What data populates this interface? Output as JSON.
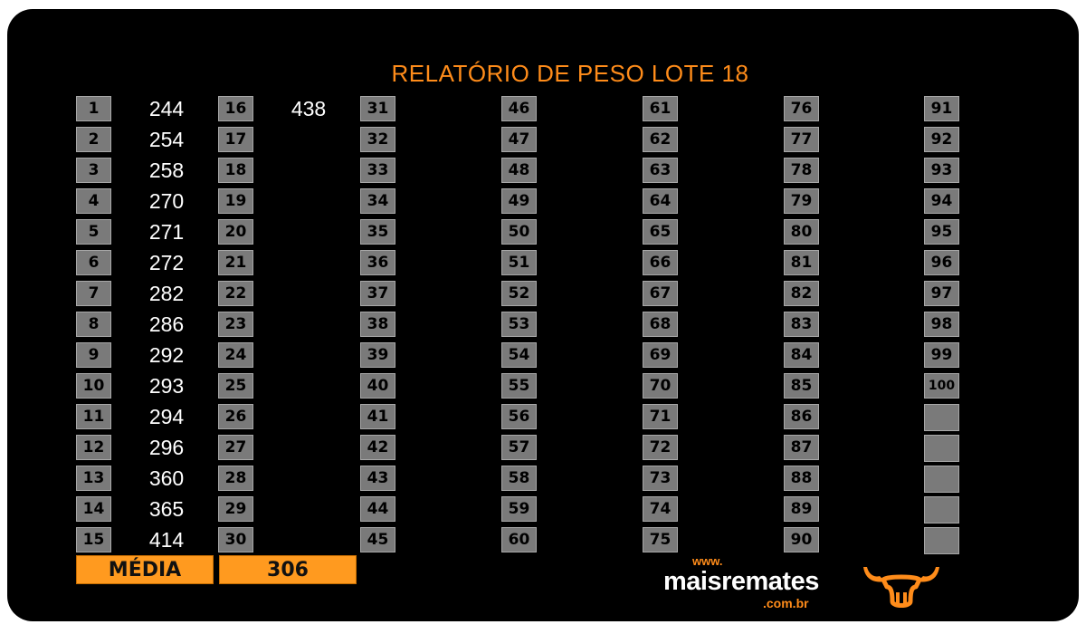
{
  "title": "RELATÓRIO DE PESO LOTE 18",
  "columns": [
    {
      "numbers": [
        "1",
        "2",
        "3",
        "4",
        "5",
        "6",
        "7",
        "8",
        "9",
        "10",
        "11",
        "12",
        "13",
        "14",
        "15"
      ],
      "values": [
        "244",
        "254",
        "258",
        "270",
        "271",
        "272",
        "282",
        "286",
        "292",
        "293",
        "294",
        "296",
        "360",
        "365",
        "414"
      ]
    },
    {
      "numbers": [
        "16",
        "17",
        "18",
        "19",
        "20",
        "21",
        "22",
        "23",
        "24",
        "25",
        "26",
        "27",
        "28",
        "29",
        "30"
      ],
      "values": [
        "438",
        "",
        "",
        "",
        "",
        "",
        "",
        "",
        "",
        "",
        "",
        "",
        "",
        "",
        ""
      ]
    },
    {
      "numbers": [
        "31",
        "32",
        "33",
        "34",
        "35",
        "36",
        "37",
        "38",
        "39",
        "40",
        "41",
        "42",
        "43",
        "44",
        "45"
      ],
      "values": []
    },
    {
      "numbers": [
        "46",
        "47",
        "48",
        "49",
        "50",
        "51",
        "52",
        "53",
        "54",
        "55",
        "56",
        "57",
        "58",
        "59",
        "60"
      ],
      "values": []
    },
    {
      "numbers": [
        "61",
        "62",
        "63",
        "64",
        "65",
        "66",
        "67",
        "68",
        "69",
        "70",
        "71",
        "72",
        "73",
        "74",
        "75"
      ],
      "values": []
    },
    {
      "numbers": [
        "76",
        "77",
        "78",
        "79",
        "80",
        "81",
        "82",
        "83",
        "84",
        "85",
        "86",
        "87",
        "88",
        "89",
        "90"
      ],
      "values": []
    },
    {
      "numbers": [
        "91",
        "92",
        "93",
        "94",
        "95",
        "96",
        "97",
        "98",
        "99",
        "100"
      ],
      "values": []
    }
  ],
  "media": {
    "label": "MÉDIA",
    "value": "306"
  },
  "brand": {
    "www": "www.",
    "name": "maisremates",
    "domain": ".com.br",
    "logo_icon": "bull-head-icon"
  },
  "colors": {
    "accent": "#ff8c1a",
    "media_bg": "#ff9a1f",
    "cell_bg": "#7a7a7a",
    "panel_bg": "#000000"
  }
}
